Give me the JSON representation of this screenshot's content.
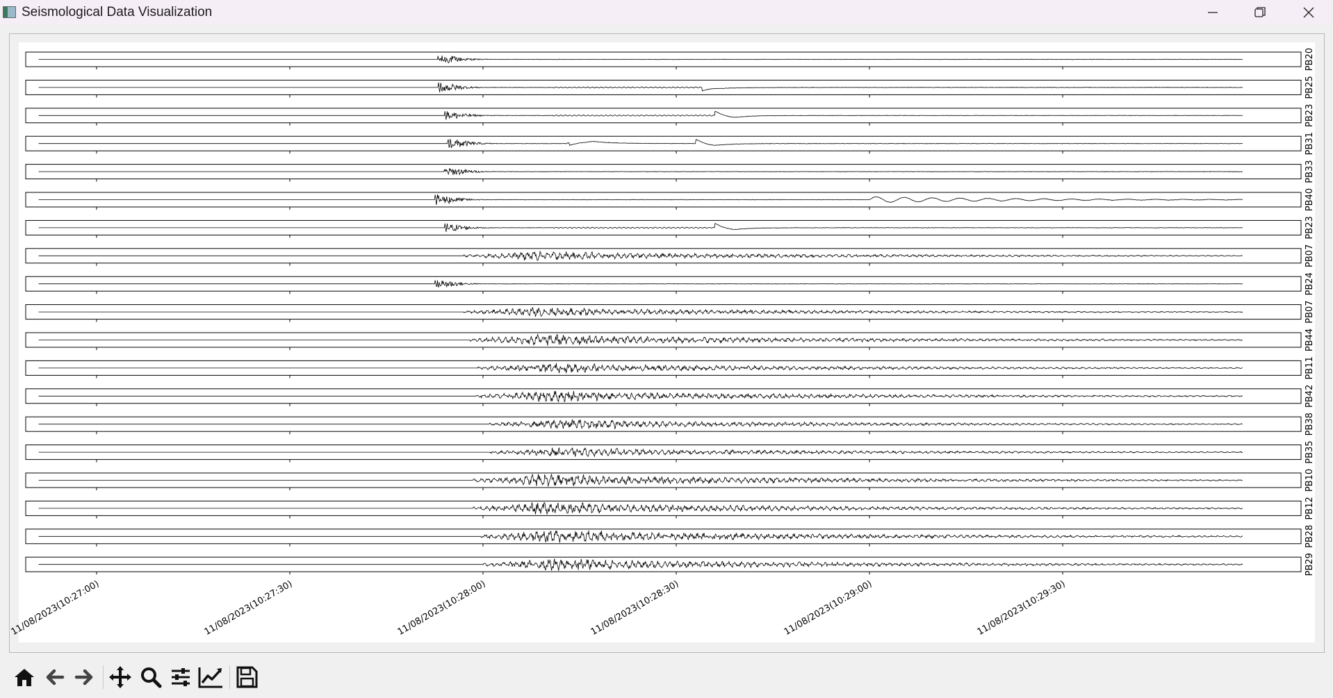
{
  "window": {
    "title": "Seismological Data Visualization",
    "controls": [
      "minimize",
      "restore",
      "close"
    ]
  },
  "chart_data": {
    "type": "line",
    "x_ticks": [
      "11/08/2023(10:27:00)",
      "11/08/2023(10:27:30)",
      "11/08/2023(10:28:00)",
      "11/08/2023(10:28:30)",
      "11/08/2023(10:29:00)",
      "11/08/2023(10:29:30)"
    ],
    "x_tick_values_s": [
      0,
      30,
      60,
      90,
      120,
      150
    ],
    "x_range_s": [
      -11,
      187
    ],
    "data_range_s": [
      -9,
      178
    ],
    "stations": [
      {
        "name": "PB20",
        "onset_s": 53.0,
        "amp": 0.6,
        "style": "burst"
      },
      {
        "name": "PB25",
        "onset_s": 53.0,
        "amp": 0.6,
        "style": "burst_pulse",
        "pulse_s": 94,
        "ring_start_s": 71
      },
      {
        "name": "PB23",
        "onset_s": 54.0,
        "amp": 0.5,
        "style": "spike_pulse",
        "pulse_s": 96,
        "ring_start_s": 71
      },
      {
        "name": "PB31",
        "onset_s": 54.5,
        "amp": 0.6,
        "style": "spike_pulse2",
        "pulse_s": 93,
        "pulse2_s": 73
      },
      {
        "name": "PB33",
        "onset_s": 54.0,
        "amp": 0.55,
        "style": "burst"
      },
      {
        "name": "PB40",
        "onset_s": 52.5,
        "amp": 0.65,
        "style": "spike_wave",
        "wave_s": 120
      },
      {
        "name": "PB23",
        "onset_s": 54.0,
        "amp": 0.5,
        "style": "spike_pulse",
        "pulse_s": 96,
        "ring_start_s": 71
      },
      {
        "name": "PB07",
        "onset_s": 57.0,
        "amp": 0.55,
        "style": "coda"
      },
      {
        "name": "PB24",
        "onset_s": 52.5,
        "amp": 0.6,
        "style": "burst"
      },
      {
        "name": "PB07",
        "onset_s": 57.0,
        "amp": 0.55,
        "style": "coda"
      },
      {
        "name": "PB44",
        "onset_s": 58.0,
        "amp": 0.7,
        "style": "coda"
      },
      {
        "name": "PB11",
        "onset_s": 59.0,
        "amp": 0.6,
        "style": "coda"
      },
      {
        "name": "PB42",
        "onset_s": 59.0,
        "amp": 0.7,
        "style": "coda"
      },
      {
        "name": "PB38",
        "onset_s": 61.0,
        "amp": 0.6,
        "style": "coda"
      },
      {
        "name": "PB35",
        "onset_s": 61.0,
        "amp": 0.55,
        "style": "coda"
      },
      {
        "name": "PB10",
        "onset_s": 58.5,
        "amp": 0.75,
        "style": "coda"
      },
      {
        "name": "PB12",
        "onset_s": 58.5,
        "amp": 0.75,
        "style": "coda"
      },
      {
        "name": "PB28",
        "onset_s": 59.5,
        "amp": 0.8,
        "style": "coda"
      },
      {
        "name": "PB29",
        "onset_s": 60.0,
        "amp": 0.75,
        "style": "coda"
      }
    ]
  },
  "toolbar": {
    "items": [
      "home-icon",
      "back-icon",
      "forward-icon",
      "pan-icon",
      "zoom-icon",
      "configure-subplots-icon",
      "edit-axis-icon",
      "save-icon"
    ]
  }
}
